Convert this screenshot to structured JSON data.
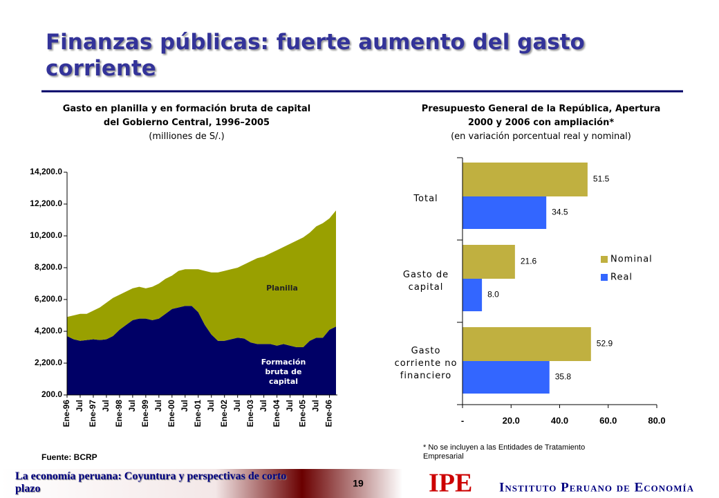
{
  "title": "Finanzas públicas: fuerte aumento del gasto corriente",
  "footer": {
    "text": "La economía peruana: Coyuntura y perspectivas de corto plazo",
    "page": "19",
    "logo": "IPE",
    "institute": "Instituto Peruano de Economía"
  },
  "chart_data": [
    {
      "type": "area",
      "title": "Gasto en planilla y en formación bruta de capital del Gobierno Central, 1996–2005",
      "subtitle": "(milliones de S/.)",
      "source": "Fuente: BCRP",
      "categories": [
        "Ene-96",
        null,
        "Jul",
        null,
        "Ene-97",
        null,
        "Jul",
        null,
        "Ene-98",
        null,
        "Jul",
        null,
        "Ene-99",
        null,
        "Jul",
        null,
        "Ene-00",
        null,
        "Jul",
        null,
        "Ene-01",
        null,
        "Jul",
        null,
        "Ene-02",
        null,
        "Jul",
        null,
        "Ene-03",
        null,
        "Jul",
        null,
        "Ene-04",
        null,
        "Jul",
        null,
        "Ene-05",
        null,
        "Jul",
        null,
        "Ene-06",
        null
      ],
      "series": [
        {
          "name": "Formación bruta de capital",
          "color": "#000066",
          "values": [
            3900,
            3700,
            3600,
            3650,
            3700,
            3650,
            3700,
            3900,
            4300,
            4600,
            4900,
            5000,
            5000,
            4900,
            5000,
            5300,
            5600,
            5700,
            5800,
            5800,
            5400,
            4600,
            4000,
            3600,
            3600,
            3700,
            3800,
            3750,
            3500,
            3400,
            3400,
            3400,
            3300,
            3400,
            3300,
            3200,
            3200,
            3600,
            3800,
            3800,
            4300,
            4500
          ]
        },
        {
          "name": "Planilla",
          "color": "#99a000",
          "values": [
            1200,
            1500,
            1700,
            1650,
            1800,
            2050,
            2300,
            2400,
            2200,
            2100,
            2000,
            2000,
            1900,
            2100,
            2200,
            2200,
            2100,
            2300,
            2300,
            2300,
            2700,
            3400,
            3900,
            4300,
            4400,
            4400,
            4400,
            4650,
            5100,
            5400,
            5500,
            5700,
            6000,
            6100,
            6400,
            6700,
            6900,
            6800,
            7000,
            7200,
            7000,
            7300
          ]
        }
      ],
      "ylim": [
        200,
        14200
      ],
      "yticks": [
        {
          "value": 200,
          "label": "200.0"
        },
        {
          "value": 2200,
          "label": "2,200.0"
        },
        {
          "value": 4200,
          "label": "4,200.0"
        },
        {
          "value": 6200,
          "label": "6,200.0"
        },
        {
          "value": 8200,
          "label": "8,200.0"
        },
        {
          "value": 10200,
          "label": "10,200.0"
        },
        {
          "value": 12200,
          "label": "12,200.0"
        },
        {
          "value": 14200,
          "label": "14,200.0"
        }
      ],
      "stacked": true,
      "grid": false
    },
    {
      "type": "barh",
      "title": "Presupuesto General de la República, Apertura 2000 y 2006 con ampliación*",
      "subtitle": "(en variación porcentual real y nominal)",
      "note": "*  No se incluyen a las Entidades de Tratamiento Empresarial",
      "categories": [
        "Total",
        "Gasto de capital",
        "Gasto corriente no financiero"
      ],
      "series": [
        {
          "name": "Nominal",
          "color": "#c0b040",
          "values": [
            51.5,
            21.6,
            52.9
          ]
        },
        {
          "name": "Real",
          "color": "#3366ff",
          "values": [
            34.5,
            8.0,
            35.8
          ],
          "value_labels": [
            "34.5",
            "8.0",
            "35.8"
          ]
        }
      ],
      "xlim": [
        0,
        80
      ],
      "xticks": [
        {
          "value": 0,
          "label": "-"
        },
        {
          "value": 20,
          "label": "20.0"
        },
        {
          "value": 40,
          "label": "40.0"
        },
        {
          "value": 60,
          "label": "60.0"
        },
        {
          "value": 80,
          "label": "80.0"
        }
      ],
      "legend": "right",
      "grid": false
    }
  ]
}
